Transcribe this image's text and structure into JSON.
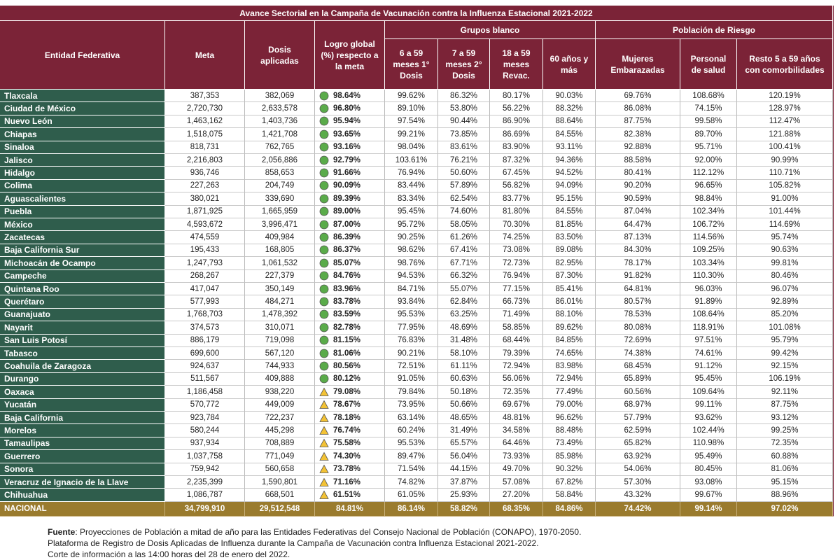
{
  "table": {
    "title": "Avance Sectorial en la Campaña de Vacunación contra la Influenza Estacional 2021-2022",
    "headers": {
      "columns": [
        "Entidad Federativa",
        "Meta",
        "Dosis aplicadas",
        "Logro global (%) respecto a la meta"
      ],
      "groups": [
        {
          "label": "Grupos blanco",
          "columns": [
            "6 a 59 meses 1° Dosis",
            "7 a 59 meses 2° Dosis",
            "18 a 59 meses Revac.",
            "60 años y más"
          ]
        },
        {
          "label": "Población de Riesgo",
          "columns": [
            "Mujeres Embarazadas",
            "Personal de salud",
            "Resto 5 a 59 años con comorbilidades"
          ]
        }
      ]
    },
    "rows": [
      [
        "Tlaxcala",
        "387,353",
        "382,069",
        "98.64%",
        "99.62%",
        "86.32%",
        "80.17%",
        "90.03%",
        "69.76%",
        "108.68%",
        "120.19%"
      ],
      [
        "Ciudad de México",
        "2,720,730",
        "2,633,578",
        "96.80%",
        "89.10%",
        "53.80%",
        "56.22%",
        "88.32%",
        "86.08%",
        "74.15%",
        "128.97%"
      ],
      [
        "Nuevo León",
        "1,463,162",
        "1,403,736",
        "95.94%",
        "97.54%",
        "90.44%",
        "86.90%",
        "88.64%",
        "87.75%",
        "99.58%",
        "112.47%"
      ],
      [
        "Chiapas",
        "1,518,075",
        "1,421,708",
        "93.65%",
        "99.21%",
        "73.85%",
        "86.69%",
        "84.55%",
        "82.38%",
        "89.70%",
        "121.88%"
      ],
      [
        "Sinaloa",
        "818,731",
        "762,765",
        "93.16%",
        "98.04%",
        "83.61%",
        "83.90%",
        "93.11%",
        "92.88%",
        "95.71%",
        "100.41%"
      ],
      [
        "Jalisco",
        "2,216,803",
        "2,056,886",
        "92.79%",
        "103.61%",
        "76.21%",
        "87.32%",
        "94.36%",
        "88.58%",
        "92.00%",
        "90.99%"
      ],
      [
        "Hidalgo",
        "936,746",
        "858,653",
        "91.66%",
        "76.94%",
        "50.60%",
        "67.45%",
        "94.52%",
        "80.41%",
        "112.12%",
        "110.71%"
      ],
      [
        "Colima",
        "227,263",
        "204,749",
        "90.09%",
        "83.44%",
        "57.89%",
        "56.82%",
        "94.09%",
        "90.20%",
        "96.65%",
        "105.82%"
      ],
      [
        "Aguascalientes",
        "380,021",
        "339,690",
        "89.39%",
        "83.34%",
        "62.54%",
        "83.77%",
        "95.15%",
        "90.59%",
        "98.84%",
        "91.00%"
      ],
      [
        "Puebla",
        "1,871,925",
        "1,665,959",
        "89.00%",
        "95.45%",
        "74.60%",
        "81.80%",
        "84.55%",
        "87.04%",
        "102.34%",
        "101.44%"
      ],
      [
        "México",
        "4,593,672",
        "3,996,471",
        "87.00%",
        "95.72%",
        "58.05%",
        "70.30%",
        "81.85%",
        "64.47%",
        "106.72%",
        "114.69%"
      ],
      [
        "Zacatecas",
        "474,559",
        "409,984",
        "86.39%",
        "90.25%",
        "61.26%",
        "74.25%",
        "83.50%",
        "87.13%",
        "114.56%",
        "95.74%"
      ],
      [
        "Baja California Sur",
        "195,433",
        "168,805",
        "86.37%",
        "98.62%",
        "67.41%",
        "73.08%",
        "89.08%",
        "84.30%",
        "109.25%",
        "90.63%"
      ],
      [
        "Michoacán de Ocampo",
        "1,247,793",
        "1,061,532",
        "85.07%",
        "98.76%",
        "67.71%",
        "72.73%",
        "82.95%",
        "78.17%",
        "103.34%",
        "99.81%"
      ],
      [
        "Campeche",
        "268,267",
        "227,379",
        "84.76%",
        "94.53%",
        "66.32%",
        "76.94%",
        "87.30%",
        "91.82%",
        "110.30%",
        "80.46%"
      ],
      [
        "Quintana Roo",
        "417,047",
        "350,149",
        "83.96%",
        "84.71%",
        "55.07%",
        "77.15%",
        "85.41%",
        "64.81%",
        "96.03%",
        "96.07%"
      ],
      [
        "Querétaro",
        "577,993",
        "484,271",
        "83.78%",
        "93.84%",
        "62.84%",
        "66.73%",
        "86.01%",
        "80.57%",
        "91.89%",
        "92.89%"
      ],
      [
        "Guanajuato",
        "1,768,703",
        "1,478,392",
        "83.59%",
        "95.53%",
        "63.25%",
        "71.49%",
        "88.10%",
        "78.53%",
        "108.64%",
        "85.20%"
      ],
      [
        "Nayarit",
        "374,573",
        "310,071",
        "82.78%",
        "77.95%",
        "48.69%",
        "58.85%",
        "89.62%",
        "80.08%",
        "118.91%",
        "101.08%"
      ],
      [
        "San Luis Potosí",
        "886,179",
        "719,098",
        "81.15%",
        "76.83%",
        "31.48%",
        "68.44%",
        "84.85%",
        "72.69%",
        "97.51%",
        "95.79%"
      ],
      [
        "Tabasco",
        "699,600",
        "567,120",
        "81.06%",
        "90.21%",
        "58.10%",
        "79.39%",
        "74.65%",
        "74.38%",
        "74.61%",
        "99.42%"
      ],
      [
        "Coahuila de Zaragoza",
        "924,637",
        "744,933",
        "80.56%",
        "72.51%",
        "61.11%",
        "72.94%",
        "83.98%",
        "68.45%",
        "91.12%",
        "92.15%"
      ],
      [
        "Durango",
        "511,567",
        "409,888",
        "80.12%",
        "91.05%",
        "60.63%",
        "56.06%",
        "72.94%",
        "65.89%",
        "95.45%",
        "106.19%"
      ],
      [
        "Oaxaca",
        "1,186,458",
        "938,220",
        "79.08%",
        "79.84%",
        "50.18%",
        "72.35%",
        "77.49%",
        "60.56%",
        "109.64%",
        "92.11%"
      ],
      [
        "Yucatán",
        "570,772",
        "449,009",
        "78.67%",
        "73.95%",
        "50.66%",
        "69.67%",
        "79.00%",
        "68.97%",
        "99.11%",
        "87.75%"
      ],
      [
        "Baja California",
        "923,784",
        "722,237",
        "78.18%",
        "63.14%",
        "48.65%",
        "48.81%",
        "96.62%",
        "57.79%",
        "93.62%",
        "93.12%"
      ],
      [
        "Morelos",
        "580,244",
        "445,298",
        "76.74%",
        "60.24%",
        "31.49%",
        "34.58%",
        "88.48%",
        "62.59%",
        "102.44%",
        "99.25%"
      ],
      [
        "Tamaulipas",
        "937,934",
        "708,889",
        "75.58%",
        "95.53%",
        "65.57%",
        "64.46%",
        "73.49%",
        "65.82%",
        "110.98%",
        "72.35%"
      ],
      [
        "Guerrero",
        "1,037,758",
        "771,049",
        "74.30%",
        "89.47%",
        "56.04%",
        "73.93%",
        "85.98%",
        "63.92%",
        "95.49%",
        "60.88%"
      ],
      [
        "Sonora",
        "759,942",
        "560,658",
        "73.78%",
        "71.54%",
        "44.15%",
        "49.70%",
        "90.32%",
        "54.06%",
        "80.45%",
        "81.06%"
      ],
      [
        "Veracruz de Ignacio de la Llave",
        "2,235,399",
        "1,590,801",
        "71.16%",
        "74.82%",
        "37.87%",
        "57.08%",
        "67.82%",
        "57.30%",
        "93.08%",
        "95.15%"
      ],
      [
        "Chihuahua",
        "1,086,787",
        "668,501",
        "61.51%",
        "61.05%",
        "25.93%",
        "27.20%",
        "58.84%",
        "43.32%",
        "99.67%",
        "88.96%"
      ]
    ],
    "total": [
      "NACIONAL",
      "34,799,910",
      "29,512,548",
      "84.81%",
      "86.14%",
      "58.82%",
      "68.35%",
      "84.86%",
      "74.42%",
      "99.14%",
      "97.02%"
    ],
    "icons": [
      "circle",
      "circle",
      "circle",
      "circle",
      "circle",
      "circle",
      "circle",
      "circle",
      "circle",
      "circle",
      "circle",
      "circle",
      "circle",
      "circle",
      "circle",
      "circle",
      "circle",
      "circle",
      "circle",
      "circle",
      "circle",
      "circle",
      "circle",
      "triangle",
      "triangle",
      "triangle",
      "triangle",
      "triangle",
      "triangle",
      "triangle",
      "triangle",
      "triangle"
    ],
    "icon_colors": {
      "circle": "#5aab4a",
      "triangle": "#f3c234"
    }
  },
  "footer": {
    "label": "Fuente",
    "lines": [
      ": Proyecciones de Población a mitad de año para las Entidades Federativas del Consejo Nacional de Población (CONAPO), 1970-2050.",
      "Plataforma de Registro de Dosis Aplicadas de Influenza durante la Campaña de Vacunación contra Influenza Estacional 2021-2022.",
      "Corte de información a las 14:00 horas del 28 de enero del 2022."
    ]
  }
}
